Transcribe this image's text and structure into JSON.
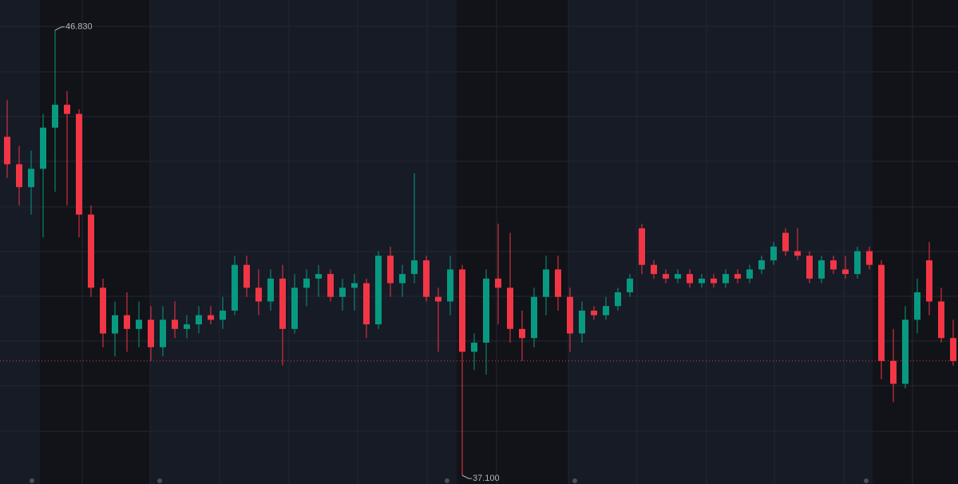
{
  "chart_data": {
    "type": "candlestick",
    "open": [
      44.5,
      43.9,
      43.4,
      43.8,
      44.7,
      45.2,
      45.0,
      42.8,
      41.2,
      40.2,
      40.6,
      40.3,
      40.5,
      39.9,
      40.5,
      40.3,
      40.4,
      40.6,
      40.5,
      40.7,
      41.7,
      41.2,
      40.9,
      41.4,
      40.3,
      41.2,
      41.4,
      41.5,
      41.0,
      41.2,
      41.3,
      40.4,
      41.9,
      41.3,
      41.5,
      41.8,
      41.0,
      40.9,
      41.6,
      39.8,
      40.0,
      41.4,
      41.2,
      40.3,
      40.1,
      41.0,
      41.6,
      41.0,
      40.2,
      40.7,
      40.6,
      40.8,
      41.1,
      42.5,
      41.7,
      41.5,
      41.4,
      41.5,
      41.3,
      41.4,
      41.3,
      41.5,
      41.4,
      41.6,
      41.8,
      42.4,
      42.0,
      41.9,
      41.4,
      41.8,
      41.6,
      41.5,
      42.0,
      41.7,
      39.6,
      39.1,
      40.5,
      41.8,
      40.9,
      40.1
    ],
    "high": [
      45.3,
      44.3,
      44.2,
      45.0,
      46.83,
      45.5,
      45.1,
      43.0,
      41.4,
      40.9,
      41.1,
      40.9,
      40.8,
      40.8,
      40.9,
      40.6,
      40.8,
      40.8,
      41.0,
      41.9,
      41.9,
      41.6,
      41.6,
      41.7,
      41.5,
      41.6,
      41.7,
      41.6,
      41.4,
      41.5,
      41.4,
      42.0,
      42.1,
      41.7,
      43.7,
      41.9,
      41.2,
      41.9,
      41.7,
      40.2,
      41.6,
      42.6,
      42.4,
      40.7,
      41.2,
      41.9,
      41.9,
      41.2,
      40.9,
      40.8,
      41.0,
      41.2,
      41.5,
      42.6,
      41.8,
      41.6,
      41.6,
      41.6,
      41.5,
      41.5,
      41.6,
      41.6,
      41.7,
      41.9,
      42.2,
      42.5,
      42.5,
      42.0,
      41.9,
      41.9,
      41.9,
      42.1,
      42.1,
      41.8,
      40.3,
      40.8,
      41.4,
      42.2,
      41.2,
      40.5
    ],
    "low": [
      43.6,
      43.0,
      42.8,
      42.3,
      43.3,
      43.0,
      42.3,
      41.0,
      39.9,
      39.7,
      39.8,
      39.9,
      39.6,
      39.7,
      40.1,
      40.1,
      40.2,
      40.4,
      40.3,
      40.6,
      41.0,
      40.6,
      40.7,
      39.5,
      40.2,
      40.8,
      41.0,
      40.9,
      40.7,
      40.7,
      40.1,
      40.3,
      41.0,
      41.0,
      41.3,
      40.9,
      39.8,
      40.6,
      37.1,
      39.4,
      39.3,
      40.4,
      40.0,
      39.6,
      39.9,
      40.6,
      40.7,
      39.8,
      40.0,
      40.5,
      40.5,
      40.7,
      41.0,
      41.5,
      41.4,
      41.3,
      41.3,
      41.2,
      41.2,
      41.2,
      41.2,
      41.3,
      41.3,
      41.5,
      41.7,
      41.9,
      41.8,
      41.3,
      41.3,
      41.5,
      41.4,
      41.4,
      41.6,
      39.2,
      38.7,
      39.0,
      40.2,
      40.6,
      40.0,
      39.5
    ],
    "close": [
      43.9,
      43.4,
      43.8,
      44.7,
      45.2,
      45.0,
      42.8,
      41.2,
      40.2,
      40.6,
      40.3,
      40.5,
      39.9,
      40.5,
      40.3,
      40.4,
      40.6,
      40.5,
      40.7,
      41.7,
      41.2,
      40.9,
      41.4,
      40.3,
      41.2,
      41.4,
      41.5,
      41.0,
      41.2,
      41.3,
      40.4,
      41.9,
      41.3,
      41.5,
      41.8,
      41.0,
      40.9,
      41.6,
      39.8,
      40.0,
      41.4,
      41.2,
      40.3,
      40.1,
      41.0,
      41.6,
      41.0,
      40.2,
      40.7,
      40.6,
      40.8,
      41.1,
      41.4,
      41.7,
      41.5,
      41.4,
      41.5,
      41.3,
      41.4,
      41.3,
      41.5,
      41.4,
      41.6,
      41.8,
      42.1,
      42.0,
      41.9,
      41.4,
      41.8,
      41.6,
      41.5,
      42.0,
      41.7,
      39.6,
      39.1,
      40.5,
      41.1,
      40.9,
      40.1,
      39.6
    ],
    "up_color": "#089981",
    "down_color": "#f23645",
    "ylim": [
      36.91,
      47.49
    ],
    "annotations": [
      {
        "value": 46.83,
        "label": "46.830"
      },
      {
        "value": 37.1,
        "label": "37.100"
      }
    ]
  }
}
